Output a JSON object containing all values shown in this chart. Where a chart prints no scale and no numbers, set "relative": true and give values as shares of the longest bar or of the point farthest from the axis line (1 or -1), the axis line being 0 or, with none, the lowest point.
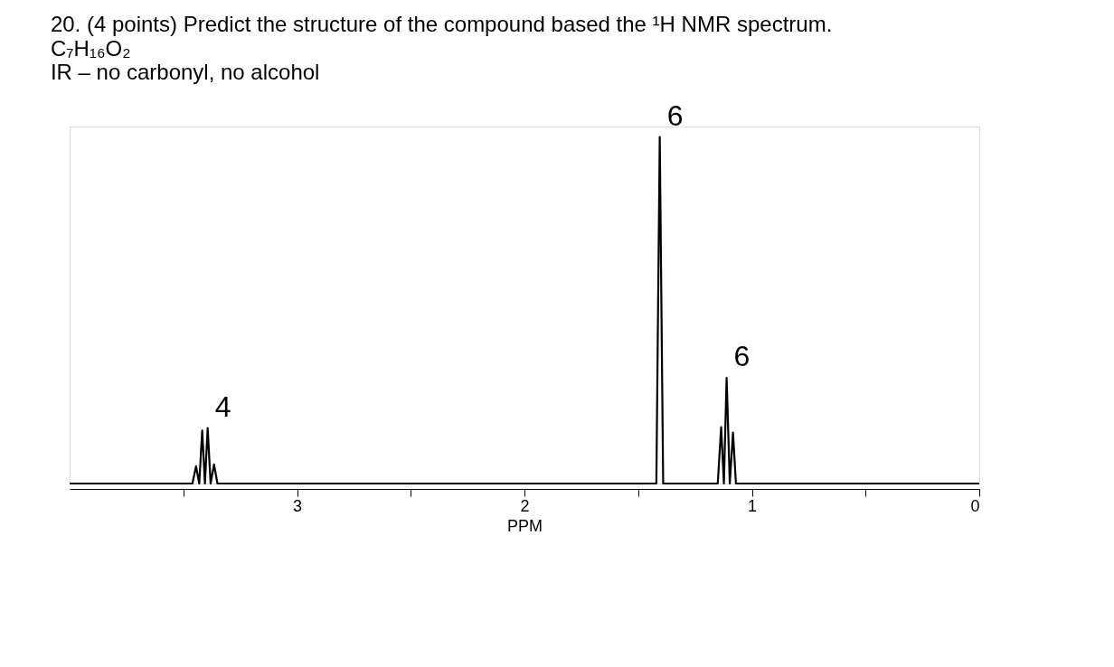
{
  "chart_data": {
    "type": "line",
    "title": "20. (4 points) Predict the structure of the compound based the ¹H NMR spectrum.",
    "subtitle": [
      "C₇H₁₆O₂",
      "IR – no carbonyl, no alcohol"
    ],
    "xlabel": "PPM",
    "relative": true,
    "x": [
      4.0,
      3.46,
      3.444,
      3.43,
      3.417,
      3.405,
      3.393,
      3.38,
      3.365,
      3.35,
      1.42,
      1.405,
      1.39,
      1.15,
      1.135,
      1.123,
      1.111,
      1.097,
      1.083,
      1.07,
      0.0
    ],
    "series": [
      {
        "color": "#000000",
        "values": [
          0,
          0,
          0.05,
          0,
          0.153,
          0,
          0.16,
          0,
          0.055,
          0,
          0,
          1,
          0,
          0,
          0.163,
          0,
          0.305,
          0,
          0.147,
          0,
          0
        ]
      }
    ],
    "xlim": [
      4.0,
      0.0
    ],
    "xticks": [
      {
        "value": 3.5,
        "label": null
      },
      3,
      {
        "value": 2.5,
        "label": null
      },
      2,
      {
        "value": 1.5,
        "label": null
      },
      1,
      {
        "value": 0.5,
        "label": null
      },
      0
    ],
    "annotations": [
      {
        "text": "4",
        "x": 3.393,
        "y": 0.16
      },
      {
        "text": "6",
        "x": 1.405,
        "y": 1
      },
      {
        "text": "6",
        "x": 1.111,
        "y": 0.305
      }
    ],
    "grid": false,
    "marker": "none",
    "line_style": "solid"
  }
}
